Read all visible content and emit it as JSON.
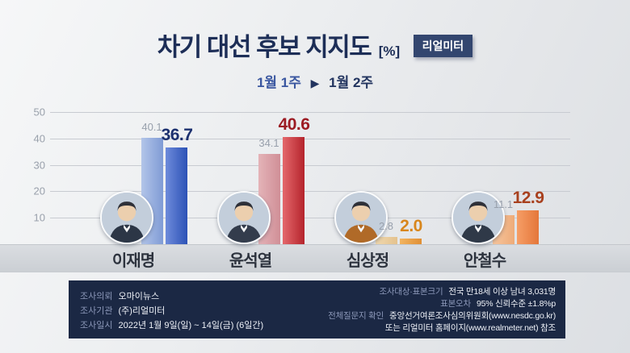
{
  "header": {
    "title": "차기 대선 후보 지지도",
    "unit": "[%]",
    "badge": "리얼미터",
    "period_from": "1월 1주",
    "arrow": "▶",
    "period_to": "1월 2주"
  },
  "chart_data": {
    "type": "bar",
    "title": "차기 대선 후보 지지도 (%)",
    "categories": [
      "이재명",
      "윤석열",
      "심상정",
      "안철수"
    ],
    "series": [
      {
        "name": "1월 1주",
        "values": [
          40.1,
          34.1,
          2.8,
          11.1
        ]
      },
      {
        "name": "1월 2주",
        "values": [
          36.7,
          40.6,
          2.0,
          12.9
        ]
      }
    ],
    "ylim": [
      0,
      50
    ],
    "yticks": [
      10,
      20,
      30,
      40,
      50
    ],
    "grid": true,
    "legend_position": "top-center",
    "colors": {
      "week1_bars": [
        [
          "#b3c5e9",
          "#7f9bd5"
        ],
        [
          "#e4b3b8",
          "#d08f97"
        ],
        [
          "#f0d8ae",
          "#e4c28e"
        ],
        [
          "#f7c69e",
          "#eeab79"
        ]
      ],
      "week2_bars": [
        [
          "#6e8bdb",
          "#2c52b6"
        ],
        [
          "#e4686c",
          "#b5242c"
        ],
        [
          "#f2b45f",
          "#e08f35"
        ],
        [
          "#f69e66",
          "#e4763a"
        ]
      ],
      "week1_label": "#98a0ac",
      "week2_labels": [
        "#1c306f",
        "#9c1b23",
        "#d8861c",
        "#a8401e"
      ],
      "avatar_suits": [
        "#2c3646",
        "#333c4c",
        "#b06a28",
        "#2f3948"
      ]
    }
  },
  "footer": {
    "left": [
      {
        "label": "조사의뢰",
        "value": "오마이뉴스"
      },
      {
        "label": "조사기관",
        "value": "(주)리얼미터"
      },
      {
        "label": "조사일시",
        "value": "2022년 1월 9일(일) ~ 14일(금) (6일간)"
      }
    ],
    "right": [
      {
        "label": "조사대상·표본크기",
        "value": "전국 만18세 이상 남녀 3,031명"
      },
      {
        "label": "표본오차",
        "value": "95% 신뢰수준 ±1.8%p"
      },
      {
        "label": "전체질문지 확인",
        "value": "중앙선거여론조사심의위원회(www.nesdc.go.kr)"
      },
      {
        "label": "",
        "value": "또는 리얼미터 홈페이지(www.realmeter.net) 참조"
      }
    ]
  }
}
